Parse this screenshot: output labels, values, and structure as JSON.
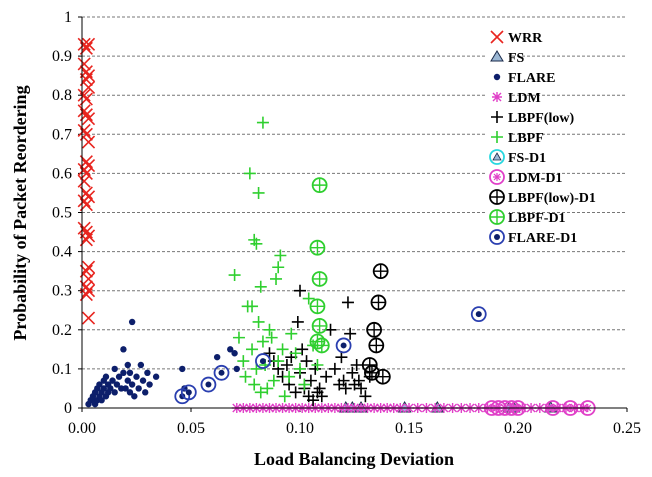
{
  "chart_data": {
    "type": "scatter",
    "xlabel": "Load Balancing Deviation",
    "ylabel": "Probability of Packet Reordering",
    "xlim": [
      0,
      0.25
    ],
    "ylim": [
      0,
      1
    ],
    "xticks": [
      "0.00",
      "0.05",
      "0.10",
      "0.15",
      "0.20",
      "0.25"
    ],
    "yticks": [
      "0",
      "0.1",
      "0.2",
      "0.3",
      "0.4",
      "0.5",
      "0.6",
      "0.7",
      "0.8",
      "0.9",
      "1"
    ],
    "grid": "horizontal dashed",
    "legend_position": "right",
    "series": [
      {
        "name": "WRR",
        "marker": "x",
        "color": "#e8251f",
        "points": [
          [
            0.001,
            0.93
          ],
          [
            0.002,
            0.92
          ],
          [
            0.003,
            0.93
          ],
          [
            0.001,
            0.88
          ],
          [
            0.002,
            0.86
          ],
          [
            0.003,
            0.85
          ],
          [
            0.002,
            0.84
          ],
          [
            0.003,
            0.82
          ],
          [
            0.001,
            0.8
          ],
          [
            0.002,
            0.79
          ],
          [
            0.001,
            0.76
          ],
          [
            0.002,
            0.75
          ],
          [
            0.003,
            0.74
          ],
          [
            0.001,
            0.71
          ],
          [
            0.002,
            0.7
          ],
          [
            0.003,
            0.68
          ],
          [
            0.002,
            0.63
          ],
          [
            0.003,
            0.62
          ],
          [
            0.001,
            0.61
          ],
          [
            0.002,
            0.6
          ],
          [
            0.001,
            0.58
          ],
          [
            0.002,
            0.55
          ],
          [
            0.003,
            0.54
          ],
          [
            0.001,
            0.53
          ],
          [
            0.002,
            0.52
          ],
          [
            0.001,
            0.46
          ],
          [
            0.002,
            0.45
          ],
          [
            0.003,
            0.44
          ],
          [
            0.002,
            0.43
          ],
          [
            0.003,
            0.36
          ],
          [
            0.002,
            0.35
          ],
          [
            0.003,
            0.33
          ],
          [
            0.002,
            0.31
          ],
          [
            0.003,
            0.3
          ],
          [
            0.002,
            0.29
          ],
          [
            0.003,
            0.23
          ]
        ]
      },
      {
        "name": "FS",
        "marker": "triangle",
        "color": "#9bb7d4",
        "points": [
          [
            0.121,
            0
          ],
          [
            0.124,
            0
          ],
          [
            0.128,
            0
          ],
          [
            0.148,
            0
          ],
          [
            0.163,
            0
          ],
          [
            0.196,
            0
          ],
          [
            0.198,
            0
          ],
          [
            0.215,
            0
          ]
        ]
      },
      {
        "name": "FLARE",
        "marker": "dot",
        "color": "#0d1f6b",
        "points": [
          [
            0.003,
            0.01
          ],
          [
            0.004,
            0.02
          ],
          [
            0.005,
            0.02
          ],
          [
            0.005,
            0.03
          ],
          [
            0.006,
            0.01
          ],
          [
            0.006,
            0.04
          ],
          [
            0.007,
            0.02
          ],
          [
            0.007,
            0.05
          ],
          [
            0.008,
            0.03
          ],
          [
            0.008,
            0.06
          ],
          [
            0.009,
            0.02
          ],
          [
            0.009,
            0.04
          ],
          [
            0.01,
            0.05
          ],
          [
            0.01,
            0.07
          ],
          [
            0.011,
            0.03
          ],
          [
            0.011,
            0.08
          ],
          [
            0.012,
            0.04
          ],
          [
            0.012,
            0.06
          ],
          [
            0.013,
            0.05
          ],
          [
            0.014,
            0.07
          ],
          [
            0.015,
            0.04
          ],
          [
            0.015,
            0.1
          ],
          [
            0.016,
            0.06
          ],
          [
            0.017,
            0.08
          ],
          [
            0.018,
            0.05
          ],
          [
            0.019,
            0.09
          ],
          [
            0.019,
            0.15
          ],
          [
            0.02,
            0.05
          ],
          [
            0.021,
            0.07
          ],
          [
            0.021,
            0.11
          ],
          [
            0.022,
            0.04
          ],
          [
            0.022,
            0.09
          ],
          [
            0.023,
            0.06
          ],
          [
            0.023,
            0.22
          ],
          [
            0.024,
            0.03
          ],
          [
            0.025,
            0.08
          ],
          [
            0.026,
            0.05
          ],
          [
            0.027,
            0.11
          ],
          [
            0.028,
            0.07
          ],
          [
            0.029,
            0.04
          ],
          [
            0.03,
            0.09
          ],
          [
            0.031,
            0.06
          ],
          [
            0.034,
            0.08
          ],
          [
            0.046,
            0.1
          ],
          [
            0.047,
            0.05
          ],
          [
            0.062,
            0.13
          ],
          [
            0.068,
            0.15
          ],
          [
            0.07,
            0.14
          ],
          [
            0.071,
            0.1
          ]
        ]
      },
      {
        "name": "LDM",
        "marker": "star",
        "color": "#e040c8",
        "points": [
          [
            0.071,
            0
          ],
          [
            0.074,
            0
          ],
          [
            0.077,
            0
          ],
          [
            0.08,
            0
          ],
          [
            0.083,
            0
          ],
          [
            0.086,
            0
          ],
          [
            0.089,
            0
          ],
          [
            0.092,
            0
          ],
          [
            0.095,
            0
          ],
          [
            0.098,
            0
          ],
          [
            0.101,
            0
          ],
          [
            0.104,
            0
          ],
          [
            0.107,
            0
          ],
          [
            0.11,
            0
          ],
          [
            0.113,
            0
          ],
          [
            0.116,
            0
          ],
          [
            0.119,
            0
          ],
          [
            0.122,
            0
          ],
          [
            0.125,
            0
          ],
          [
            0.128,
            0
          ],
          [
            0.131,
            0
          ],
          [
            0.134,
            0
          ],
          [
            0.137,
            0
          ],
          [
            0.14,
            0
          ],
          [
            0.143,
            0
          ],
          [
            0.146,
            0
          ],
          [
            0.15,
            0
          ],
          [
            0.154,
            0
          ],
          [
            0.158,
            0
          ],
          [
            0.162,
            0
          ],
          [
            0.166,
            0
          ],
          [
            0.17,
            0
          ],
          [
            0.174,
            0
          ],
          [
            0.178,
            0
          ],
          [
            0.182,
            0
          ],
          [
            0.186,
            0
          ],
          [
            0.19,
            0
          ],
          [
            0.194,
            0
          ],
          [
            0.198,
            0
          ],
          [
            0.202,
            0
          ],
          [
            0.206,
            0
          ],
          [
            0.21,
            0
          ],
          [
            0.214,
            0
          ],
          [
            0.218,
            0
          ],
          [
            0.222,
            0
          ],
          [
            0.226,
            0
          ],
          [
            0.23,
            0
          ]
        ]
      },
      {
        "name": "LBPF(low)",
        "marker": "plus",
        "color": "#000000",
        "points": [
          [
            0.086,
            0.14
          ],
          [
            0.088,
            0.12
          ],
          [
            0.09,
            0.1
          ],
          [
            0.092,
            0.08
          ],
          [
            0.094,
            0.11
          ],
          [
            0.095,
            0.06
          ],
          [
            0.096,
            0.13
          ],
          [
            0.098,
            0.04
          ],
          [
            0.099,
            0.22
          ],
          [
            0.1,
            0.3
          ],
          [
            0.1,
            0.09
          ],
          [
            0.101,
            0.15
          ],
          [
            0.102,
            0.05
          ],
          [
            0.103,
            0.12
          ],
          [
            0.104,
            0.03
          ],
          [
            0.105,
            0.07
          ],
          [
            0.106,
            0.02
          ],
          [
            0.107,
            0.1
          ],
          [
            0.108,
            0.04
          ],
          [
            0.109,
            0.05
          ],
          [
            0.11,
            0.03
          ],
          [
            0.112,
            0.08
          ],
          [
            0.114,
            0.2
          ],
          [
            0.116,
            0.1
          ],
          [
            0.118,
            0.06
          ],
          [
            0.119,
            0.13
          ],
          [
            0.12,
            0.07
          ],
          [
            0.121,
            0.05
          ],
          [
            0.122,
            0.27
          ],
          [
            0.123,
            0.19
          ],
          [
            0.124,
            0.09
          ],
          [
            0.125,
            0.06
          ],
          [
            0.126,
            0.11
          ],
          [
            0.127,
            0.07
          ],
          [
            0.128,
            0.05
          ],
          [
            0.13,
            0.03
          ],
          [
            0.132,
            0.08
          ]
        ]
      },
      {
        "name": "LBPF",
        "marker": "plus",
        "color": "#2fcf2f",
        "points": [
          [
            0.07,
            0.34
          ],
          [
            0.072,
            0.18
          ],
          [
            0.074,
            0.12
          ],
          [
            0.075,
            0.08
          ],
          [
            0.076,
            0.26
          ],
          [
            0.077,
            0.6
          ],
          [
            0.078,
            0.26
          ],
          [
            0.078,
            0.15
          ],
          [
            0.079,
            0.43
          ],
          [
            0.079,
            0.06
          ],
          [
            0.08,
            0.42
          ],
          [
            0.08,
            0.1
          ],
          [
            0.081,
            0.55
          ],
          [
            0.081,
            0.22
          ],
          [
            0.082,
            0.31
          ],
          [
            0.082,
            0.04
          ],
          [
            0.083,
            0.73
          ],
          [
            0.083,
            0.17
          ],
          [
            0.084,
            0.11
          ],
          [
            0.085,
            0.05
          ],
          [
            0.086,
            0.2
          ],
          [
            0.087,
            0.18
          ],
          [
            0.088,
            0.07
          ],
          [
            0.089,
            0.33
          ],
          [
            0.09,
            0.36
          ],
          [
            0.09,
            0.12
          ],
          [
            0.091,
            0.39
          ],
          [
            0.092,
            0.15
          ],
          [
            0.093,
            0.03
          ],
          [
            0.095,
            0.08
          ],
          [
            0.096,
            0.19
          ],
          [
            0.098,
            0.14
          ],
          [
            0.1,
            0.1
          ],
          [
            0.102,
            0.06
          ],
          [
            0.104,
            0.28
          ],
          [
            0.106,
            0.16
          ],
          [
            0.108,
            0.11
          ]
        ]
      },
      {
        "name": "FS-D1",
        "marker": "circle",
        "color": "#28d8e0",
        "points": []
      },
      {
        "name": "LDM-D1",
        "marker": "circle",
        "color": "#e040c8",
        "points": [
          [
            0.188,
            0
          ],
          [
            0.191,
            0
          ],
          [
            0.194,
            0
          ],
          [
            0.197,
            0
          ],
          [
            0.2,
            0
          ],
          [
            0.216,
            0
          ],
          [
            0.224,
            0
          ],
          [
            0.232,
            0
          ]
        ]
      },
      {
        "name": "LBPF(low)-D1",
        "marker": "circle",
        "color": "#000000",
        "points": [
          [
            0.132,
            0.11
          ],
          [
            0.133,
            0.09
          ],
          [
            0.134,
            0.2
          ],
          [
            0.135,
            0.16
          ],
          [
            0.136,
            0.27
          ],
          [
            0.137,
            0.35
          ],
          [
            0.138,
            0.08
          ]
        ]
      },
      {
        "name": "LBPF-D1",
        "marker": "circle",
        "color": "#2fcf2f",
        "points": [
          [
            0.108,
            0.41
          ],
          [
            0.109,
            0.57
          ],
          [
            0.109,
            0.33
          ],
          [
            0.108,
            0.26
          ],
          [
            0.109,
            0.21
          ],
          [
            0.108,
            0.17
          ],
          [
            0.11,
            0.16
          ]
        ]
      },
      {
        "name": "FLARE-D1",
        "marker": "circle",
        "color": "#2a3fb0",
        "points": [
          [
            0.046,
            0.03
          ],
          [
            0.049,
            0.04
          ],
          [
            0.058,
            0.06
          ],
          [
            0.064,
            0.09
          ],
          [
            0.083,
            0.12
          ],
          [
            0.12,
            0.16
          ],
          [
            0.182,
            0.24
          ]
        ]
      }
    ]
  }
}
